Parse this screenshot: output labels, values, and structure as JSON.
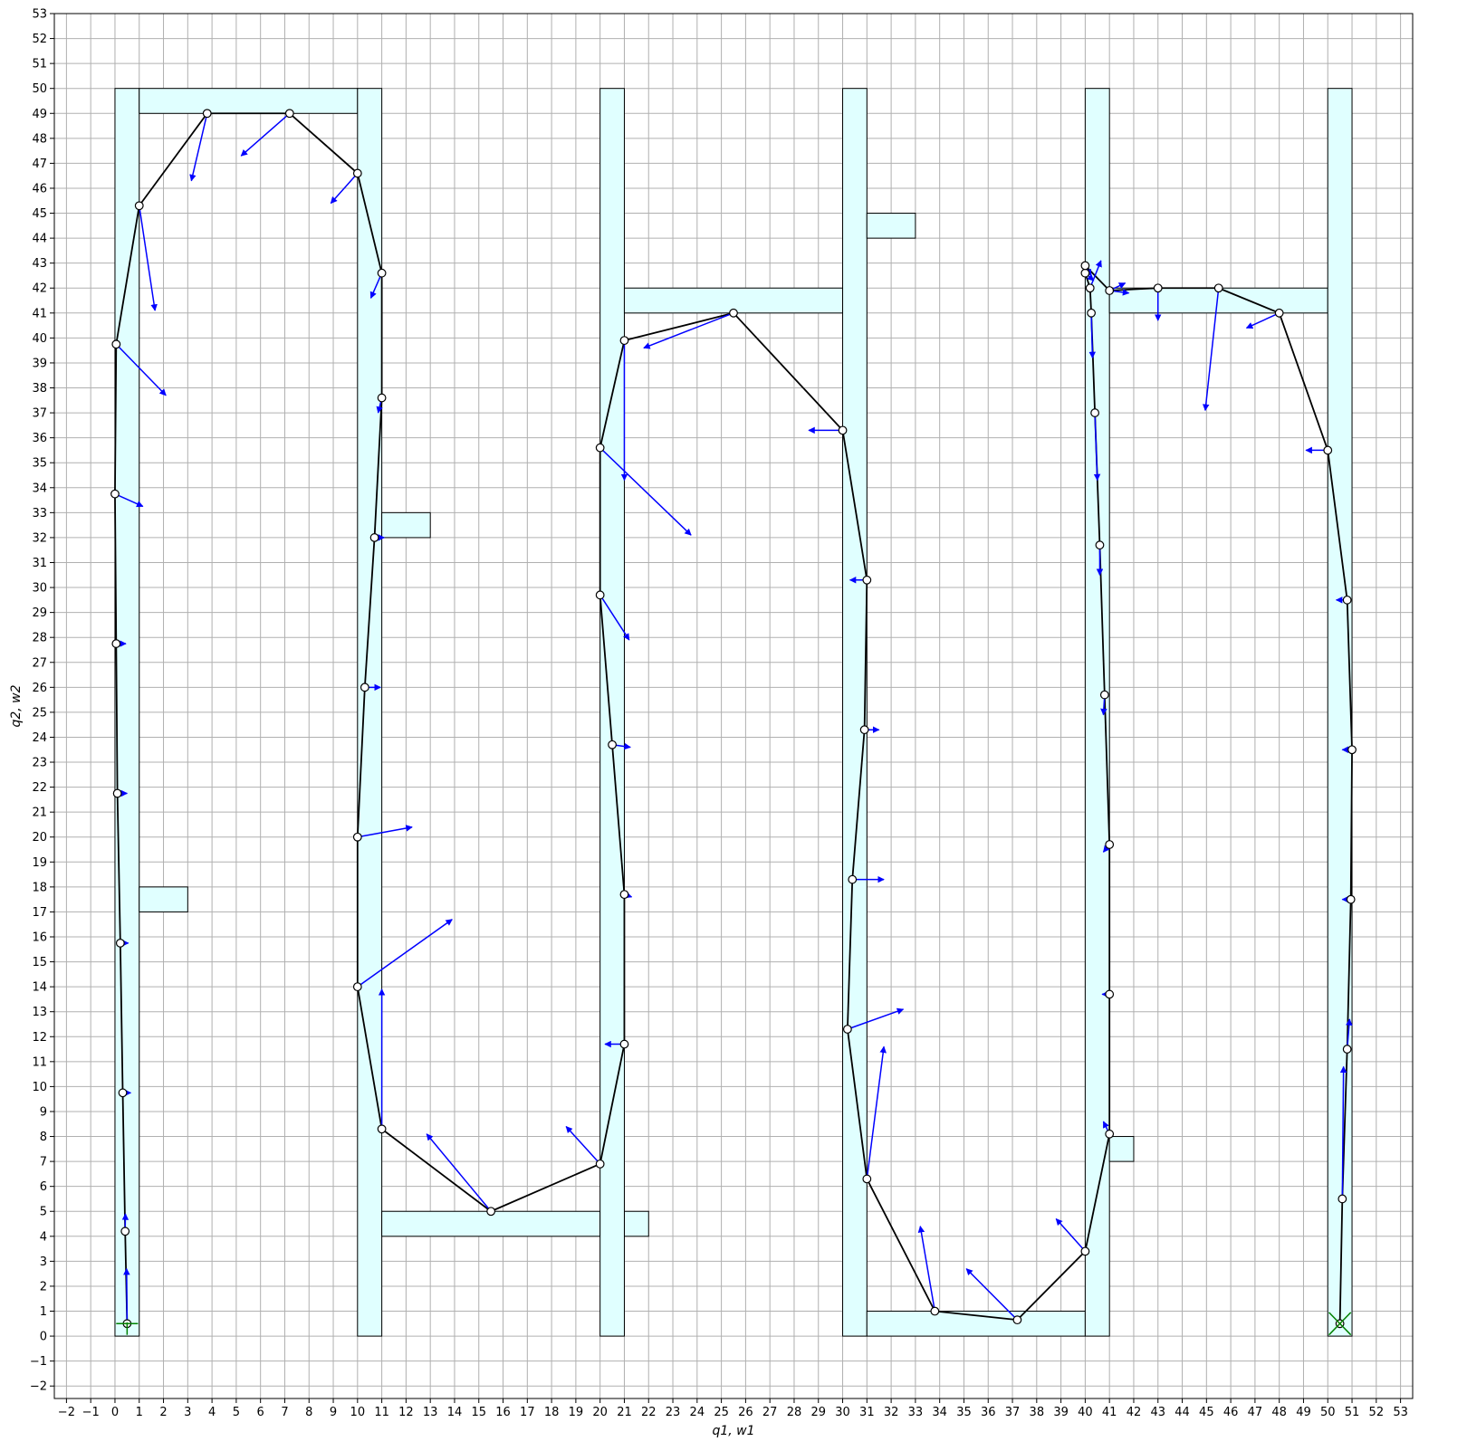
{
  "chart_data": {
    "type": "scatter",
    "title": "",
    "xlabel": "q1, w1",
    "ylabel": "q2, w2",
    "xlim": [
      -2.5,
      53.5
    ],
    "ylim": [
      -2.5,
      53
    ],
    "xticks": [
      -2,
      -1,
      0,
      1,
      2,
      3,
      4,
      5,
      6,
      7,
      8,
      9,
      10,
      11,
      12,
      13,
      14,
      15,
      16,
      17,
      18,
      19,
      20,
      21,
      22,
      23,
      24,
      25,
      26,
      27,
      28,
      29,
      30,
      31,
      32,
      33,
      34,
      35,
      36,
      37,
      38,
      39,
      40,
      41,
      42,
      43,
      44,
      45,
      46,
      47,
      48,
      49,
      50,
      51,
      52,
      53
    ],
    "yticks": [
      -2,
      -1,
      0,
      1,
      2,
      3,
      4,
      5,
      6,
      7,
      8,
      9,
      10,
      11,
      12,
      13,
      14,
      15,
      16,
      17,
      18,
      19,
      20,
      21,
      22,
      23,
      24,
      25,
      26,
      27,
      28,
      29,
      30,
      31,
      32,
      33,
      34,
      35,
      36,
      37,
      38,
      39,
      40,
      41,
      42,
      43,
      44,
      45,
      46,
      47,
      48,
      49,
      50,
      51,
      52,
      53
    ],
    "grid": true,
    "colors": {
      "region_fill": "#e0ffff",
      "region_edge": "#000000",
      "path": "#000000",
      "arrow": "#0000ff",
      "start_marker": "#008000",
      "goal_marker": "#008000",
      "grid": "#b0b0b0"
    },
    "regions": [
      [
        0,
        0,
        1,
        50
      ],
      [
        1,
        49,
        10,
        50
      ],
      [
        10,
        0,
        11,
        50
      ],
      [
        1,
        17,
        3,
        18
      ],
      [
        11,
        32,
        13,
        33
      ],
      [
        11,
        4,
        20,
        5
      ],
      [
        21,
        4,
        22,
        5
      ],
      [
        20,
        0,
        21,
        50
      ],
      [
        21,
        41,
        30,
        42
      ],
      [
        30,
        0,
        31,
        50
      ],
      [
        31,
        44,
        33,
        45
      ],
      [
        31,
        0,
        40,
        1
      ],
      [
        40,
        0,
        41,
        50
      ],
      [
        41,
        7,
        42,
        8
      ],
      [
        41,
        41,
        50,
        42
      ],
      [
        50,
        0,
        51,
        50
      ]
    ],
    "path": [
      [
        0.5,
        0.5
      ],
      [
        0.42,
        4.2
      ],
      [
        0.32,
        9.75
      ],
      [
        0.22,
        15.75
      ],
      [
        0.1,
        21.75
      ],
      [
        0.05,
        27.75
      ],
      [
        0,
        33.75
      ],
      [
        0.05,
        39.75
      ],
      [
        1,
        45.3
      ],
      [
        3.8,
        49
      ],
      [
        7.2,
        49
      ],
      [
        10,
        46.6
      ],
      [
        11,
        42.6
      ],
      [
        11,
        37.6
      ],
      [
        10.7,
        32
      ],
      [
        10.3,
        26
      ],
      [
        10,
        20
      ],
      [
        10,
        14
      ],
      [
        11,
        8.3
      ],
      [
        15.5,
        5
      ],
      [
        20,
        6.9
      ],
      [
        21,
        11.7
      ],
      [
        21,
        17.7
      ],
      [
        20.5,
        23.7
      ],
      [
        20,
        29.7
      ],
      [
        20,
        35.6
      ],
      [
        21,
        39.9
      ],
      [
        25.5,
        41
      ],
      [
        30,
        36.3
      ],
      [
        31,
        30.3
      ],
      [
        30.9,
        24.3
      ],
      [
        30.4,
        18.3
      ],
      [
        30.2,
        12.3
      ],
      [
        31,
        6.3
      ],
      [
        33.8,
        1
      ],
      [
        37.2,
        0.65
      ],
      [
        40,
        3.4
      ],
      [
        41,
        8.1
      ],
      [
        41,
        13.7
      ],
      [
        41,
        19.7
      ],
      [
        40.8,
        25.7
      ],
      [
        40.6,
        31.7
      ],
      [
        40.4,
        37
      ],
      [
        40.25,
        41
      ],
      [
        40.2,
        42
      ],
      [
        40,
        42.6
      ],
      [
        40,
        42.9
      ],
      [
        41,
        41.9
      ],
      [
        43,
        42
      ],
      [
        45.5,
        42
      ],
      [
        48,
        41
      ],
      [
        50,
        35.5
      ],
      [
        50.8,
        29.5
      ],
      [
        51,
        23.5
      ],
      [
        50.95,
        17.5
      ],
      [
        50.8,
        11.5
      ],
      [
        50.6,
        5.5
      ],
      [
        50.5,
        0.5
      ]
    ],
    "arrows": [
      [
        0.5,
        0.5,
        0.48,
        2.7
      ],
      [
        0.42,
        4.2,
        0.43,
        4.9
      ],
      [
        0.32,
        9.75,
        0.65,
        9.75
      ],
      [
        0.22,
        15.75,
        0.55,
        15.75
      ],
      [
        0.1,
        21.75,
        0.5,
        21.75
      ],
      [
        0.05,
        27.75,
        0.45,
        27.75
      ],
      [
        0,
        33.75,
        1.15,
        33.25
      ],
      [
        0.05,
        39.75,
        2.1,
        37.7
      ],
      [
        1,
        45.3,
        1.65,
        41.1
      ],
      [
        3.8,
        49,
        3.15,
        46.3
      ],
      [
        7.2,
        49,
        5.2,
        47.3
      ],
      [
        10,
        46.6,
        8.9,
        45.4
      ],
      [
        11,
        42.6,
        10.55,
        41.6
      ],
      [
        11,
        37.6,
        10.85,
        37
      ],
      [
        10.7,
        32,
        11.1,
        32
      ],
      [
        10.3,
        26,
        10.95,
        26
      ],
      [
        10,
        20,
        12.25,
        20.4
      ],
      [
        10,
        14,
        13.9,
        16.7
      ],
      [
        11,
        8.3,
        11,
        13.9
      ],
      [
        15.5,
        5,
        12.85,
        8.1
      ],
      [
        20,
        6.9,
        18.6,
        8.4
      ],
      [
        21,
        11.7,
        20.2,
        11.7
      ],
      [
        21,
        17.7,
        21.3,
        17.6
      ],
      [
        20.5,
        23.7,
        21.25,
        23.6
      ],
      [
        20,
        29.7,
        21.2,
        27.9
      ],
      [
        20,
        35.6,
        23.75,
        32.1
      ],
      [
        21,
        39.9,
        21,
        34.3
      ],
      [
        25.5,
        41,
        21.8,
        39.6
      ],
      [
        30,
        36.3,
        28.6,
        36.3
      ],
      [
        31,
        30.3,
        30.3,
        30.3
      ],
      [
        30.9,
        24.3,
        31.5,
        24.3
      ],
      [
        30.4,
        18.3,
        31.7,
        18.3
      ],
      [
        30.2,
        12.3,
        32.5,
        13.1
      ],
      [
        31,
        6.3,
        31.7,
        11.6
      ],
      [
        33.8,
        1,
        33.2,
        4.4
      ],
      [
        37.2,
        0.65,
        35.1,
        2.7
      ],
      [
        40,
        3.4,
        38.8,
        4.7
      ],
      [
        41,
        8.1,
        40.75,
        8.6
      ],
      [
        41,
        13.7,
        40.7,
        13.7
      ],
      [
        41,
        19.7,
        40.75,
        19.4
      ],
      [
        40.8,
        25.7,
        40.75,
        24.9
      ],
      [
        40.6,
        31.7,
        40.6,
        30.5
      ],
      [
        40.4,
        37,
        40.5,
        34.3
      ],
      [
        40.25,
        41,
        40.3,
        39.2
      ],
      [
        40.2,
        42,
        40.65,
        43.1
      ],
      [
        40,
        42.6,
        40.35,
        42.3
      ],
      [
        40,
        42.9,
        40.25,
        42.5
      ],
      [
        41,
        41.9,
        41.8,
        41.8
      ],
      [
        41,
        41.9,
        41.65,
        42.2
      ],
      [
        43,
        42,
        43,
        40.7
      ],
      [
        45.5,
        42,
        44.95,
        37.1
      ],
      [
        48,
        41,
        46.65,
        40.4
      ],
      [
        50,
        35.5,
        49.1,
        35.5
      ],
      [
        50.8,
        29.5,
        50.35,
        29.5
      ],
      [
        51,
        23.5,
        50.6,
        23.5
      ],
      [
        50.95,
        17.5,
        50.6,
        17.5
      ],
      [
        50.8,
        11.5,
        50.9,
        12.7
      ],
      [
        50.6,
        5.5,
        50.65,
        10.8
      ]
    ],
    "start": [
      0.5,
      0.5
    ],
    "goal": [
      50.5,
      0.5
    ]
  }
}
